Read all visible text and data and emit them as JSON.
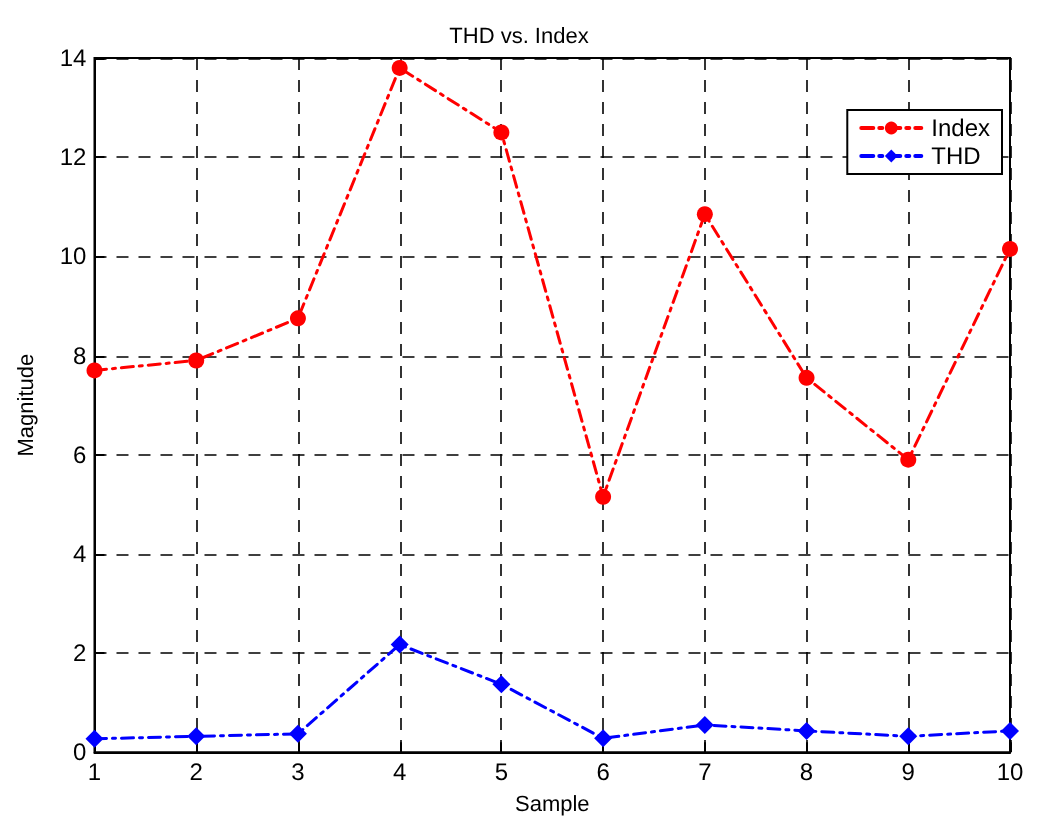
{
  "chart_data": {
    "type": "line",
    "title": "THD vs. Index",
    "xlabel": "Sample",
    "ylabel": "Magnitude",
    "x": [
      1,
      2,
      3,
      4,
      5,
      6,
      7,
      8,
      9,
      10
    ],
    "series": [
      {
        "name": "Index",
        "color": "#ff0000",
        "marker": "circle",
        "line_style": "dashed",
        "values": [
          7.7,
          7.9,
          8.75,
          13.8,
          12.5,
          5.15,
          10.85,
          7.55,
          5.9,
          10.15
        ]
      },
      {
        "name": "THD",
        "color": "#0000ff",
        "marker": "diamond",
        "line_style": "dashed",
        "values": [
          0.27,
          0.32,
          0.37,
          2.17,
          1.37,
          0.28,
          0.55,
          0.43,
          0.32,
          0.43
        ]
      }
    ],
    "xlim": [
      1,
      10
    ],
    "xticks": [
      1,
      2,
      3,
      4,
      5,
      6,
      7,
      8,
      9,
      10
    ],
    "ylim": [
      0,
      14
    ],
    "yticks": [
      0,
      2,
      4,
      6,
      8,
      10,
      12,
      14
    ],
    "grid": true,
    "legend": "top right"
  }
}
